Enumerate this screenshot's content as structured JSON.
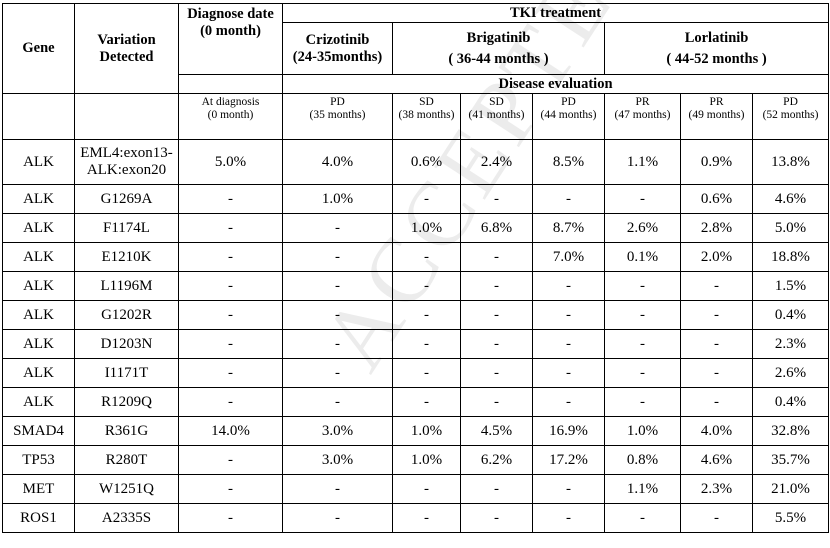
{
  "watermark": "ACCEPTED MANUSCRIPT",
  "header": {
    "gene": "Gene",
    "variation": [
      "Variation",
      "Detected"
    ],
    "diagnose": [
      "Diagnose date",
      "(0 month)"
    ],
    "tki": "TKI treatment",
    "crizotinib": [
      "Crizotinib",
      "(24-35months)"
    ],
    "brigatinib": [
      "Brigatinib",
      "( 36-44 months )"
    ],
    "lorlatinib": [
      "Lorlatinib",
      "( 44-52 months )"
    ],
    "disease_eval": "Disease evaluation",
    "timepoints": [
      [
        "At diagnosis",
        "(0 month)"
      ],
      [
        "PD",
        "(35 months)"
      ],
      [
        "SD",
        "(38 months)"
      ],
      [
        "SD",
        "(41 months)"
      ],
      [
        "PD",
        "(44 months)"
      ],
      [
        "PR",
        "(47 months)"
      ],
      [
        "PR",
        "(49 months)"
      ],
      [
        "PD",
        "(52 months)"
      ]
    ]
  },
  "rows": [
    {
      "gene": "ALK",
      "variation": [
        "EML4:exon13-",
        "ALK:exon20"
      ],
      "values": [
        "5.0%",
        "4.0%",
        "0.6%",
        "2.4%",
        "8.5%",
        "1.1%",
        "0.9%",
        "13.8%"
      ]
    },
    {
      "gene": "ALK",
      "variation": [
        "G1269A"
      ],
      "values": [
        "-",
        "1.0%",
        "-",
        "-",
        "-",
        "-",
        "0.6%",
        "4.6%"
      ]
    },
    {
      "gene": "ALK",
      "variation": [
        "F1174L"
      ],
      "values": [
        "-",
        "-",
        "1.0%",
        "6.8%",
        "8.7%",
        "2.6%",
        "2.8%",
        "5.0%"
      ]
    },
    {
      "gene": "ALK",
      "variation": [
        "E1210K"
      ],
      "values": [
        "-",
        "-",
        "-",
        "-",
        "7.0%",
        "0.1%",
        "2.0%",
        "18.8%"
      ]
    },
    {
      "gene": "ALK",
      "variation": [
        "L1196M"
      ],
      "values": [
        "-",
        "-",
        "-",
        "-",
        "-",
        "-",
        "-",
        "1.5%"
      ]
    },
    {
      "gene": "ALK",
      "variation": [
        "G1202R"
      ],
      "values": [
        "-",
        "-",
        "-",
        "-",
        "-",
        "-",
        "-",
        "0.4%"
      ]
    },
    {
      "gene": "ALK",
      "variation": [
        "D1203N"
      ],
      "values": [
        "-",
        "-",
        "-",
        "-",
        "-",
        "-",
        "-",
        "2.3%"
      ]
    },
    {
      "gene": "ALK",
      "variation": [
        "I1171T"
      ],
      "values": [
        "-",
        "-",
        "-",
        "-",
        "-",
        "-",
        "-",
        "2.6%"
      ]
    },
    {
      "gene": "ALK",
      "variation": [
        "R1209Q"
      ],
      "values": [
        "-",
        "-",
        "-",
        "-",
        "-",
        "-",
        "-",
        "0.4%"
      ]
    },
    {
      "gene": "SMAD4",
      "variation": [
        "R361G"
      ],
      "values": [
        "14.0%",
        "3.0%",
        "1.0%",
        "4.5%",
        "16.9%",
        "1.0%",
        "4.0%",
        "32.8%"
      ]
    },
    {
      "gene": "TP53",
      "variation": [
        "R280T"
      ],
      "values": [
        "-",
        "3.0%",
        "1.0%",
        "6.2%",
        "17.2%",
        "0.8%",
        "4.6%",
        "35.7%"
      ]
    },
    {
      "gene": "MET",
      "variation": [
        "W1251Q"
      ],
      "values": [
        "-",
        "-",
        "-",
        "-",
        "-",
        "1.1%",
        "2.3%",
        "21.0%"
      ]
    },
    {
      "gene": "ROS1",
      "variation": [
        "A2335S"
      ],
      "values": [
        "-",
        "-",
        "-",
        "-",
        "-",
        "-",
        "-",
        "5.5%"
      ]
    }
  ]
}
